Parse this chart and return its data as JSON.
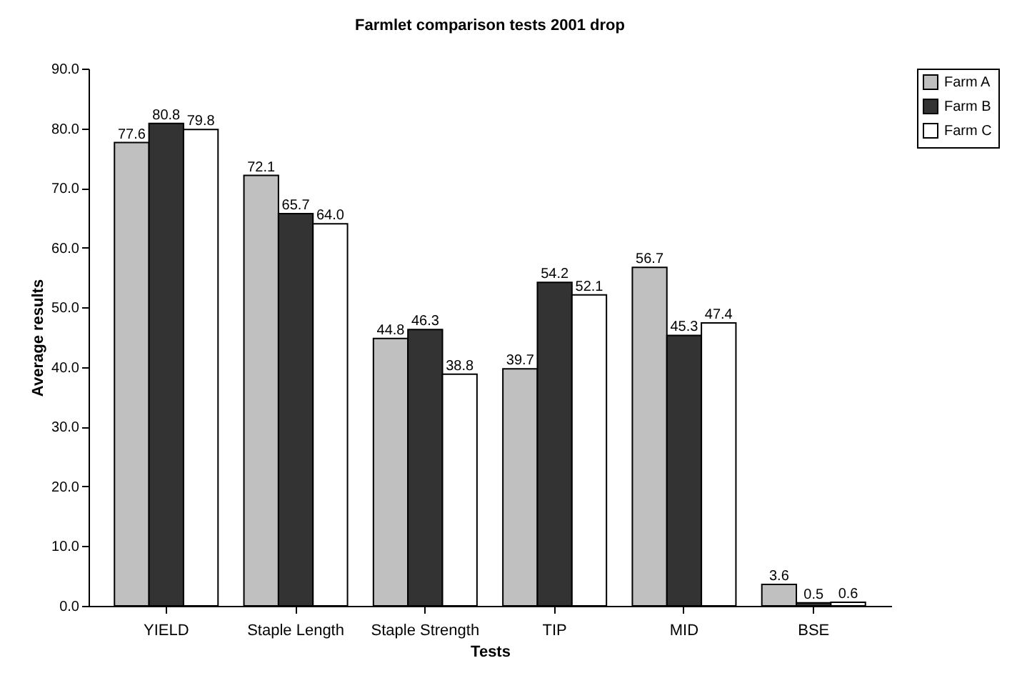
{
  "chart_data": {
    "type": "bar",
    "title": "Farmlet comparison tests 2001 drop",
    "xlabel": "Tests",
    "ylabel": "Average results",
    "categories": [
      "YIELD",
      "Staple Length",
      "Staple Strength",
      "TIP",
      "MID",
      "BSE"
    ],
    "series": [
      {
        "name": "Farm A",
        "color": "#c0c0c0",
        "values": [
          77.6,
          72.1,
          44.8,
          39.7,
          56.7,
          3.6
        ],
        "value_labels": [
          "77.6",
          "72.1",
          "44.8",
          "39.7",
          "56.7",
          "3.6"
        ]
      },
      {
        "name": "Farm B",
        "color": "#333333",
        "values": [
          80.8,
          65.7,
          46.3,
          54.2,
          45.3,
          0.5
        ],
        "value_labels": [
          "80.8",
          "65.7",
          "46.3",
          "54.2",
          "45.3",
          "0.5"
        ]
      },
      {
        "name": "Farm C",
        "color": "#ffffff",
        "values": [
          79.8,
          64.0,
          38.8,
          52.1,
          47.4,
          0.6
        ],
        "value_labels": [
          "79.8",
          "64.0",
          "38.8",
          "52.1",
          "47.4",
          "0.6"
        ]
      }
    ],
    "ylim": [
      0,
      90
    ],
    "yticks": [
      {
        "value": 0,
        "label": "0.0"
      },
      {
        "value": 10,
        "label": "10.0"
      },
      {
        "value": 20,
        "label": "20.0"
      },
      {
        "value": 30,
        "label": "30.0"
      },
      {
        "value": 40,
        "label": "40.0"
      },
      {
        "value": 50,
        "label": "50.0"
      },
      {
        "value": 60,
        "label": "60.0"
      },
      {
        "value": 70,
        "label": "70.0"
      },
      {
        "value": 80,
        "label": "80.0"
      },
      {
        "value": 90,
        "label": "90.0"
      }
    ],
    "grid": false,
    "legend": "right"
  }
}
